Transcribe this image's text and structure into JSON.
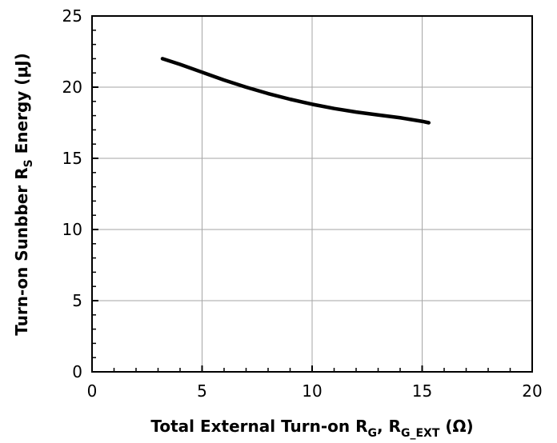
{
  "chart_data": {
    "type": "line",
    "xlabel": {
      "main": "Total External Turn-on R",
      "sub1": "G",
      "sep": ", R",
      "sub2": "G_EXT",
      "unit": " (Ω)"
    },
    "ylabel": {
      "main": "Turn-on Sunbber R",
      "sub": "S",
      "rest": " Energy (μJ)"
    },
    "xlim": [
      0,
      20
    ],
    "ylim": [
      0,
      25
    ],
    "xticks": [
      0,
      5,
      10,
      15,
      20
    ],
    "yticks": [
      0,
      5,
      10,
      15,
      20,
      25
    ],
    "grid": true,
    "legend": "none",
    "series": [
      {
        "color": "#000000",
        "x": [
          3.2,
          4,
          5,
          6,
          7,
          8,
          9,
          10,
          11,
          12,
          13,
          14,
          15,
          15.3
        ],
        "y": [
          22.0,
          21.6,
          21.05,
          20.5,
          20.0,
          19.55,
          19.15,
          18.8,
          18.5,
          18.25,
          18.05,
          17.85,
          17.6,
          17.5
        ]
      }
    ]
  }
}
